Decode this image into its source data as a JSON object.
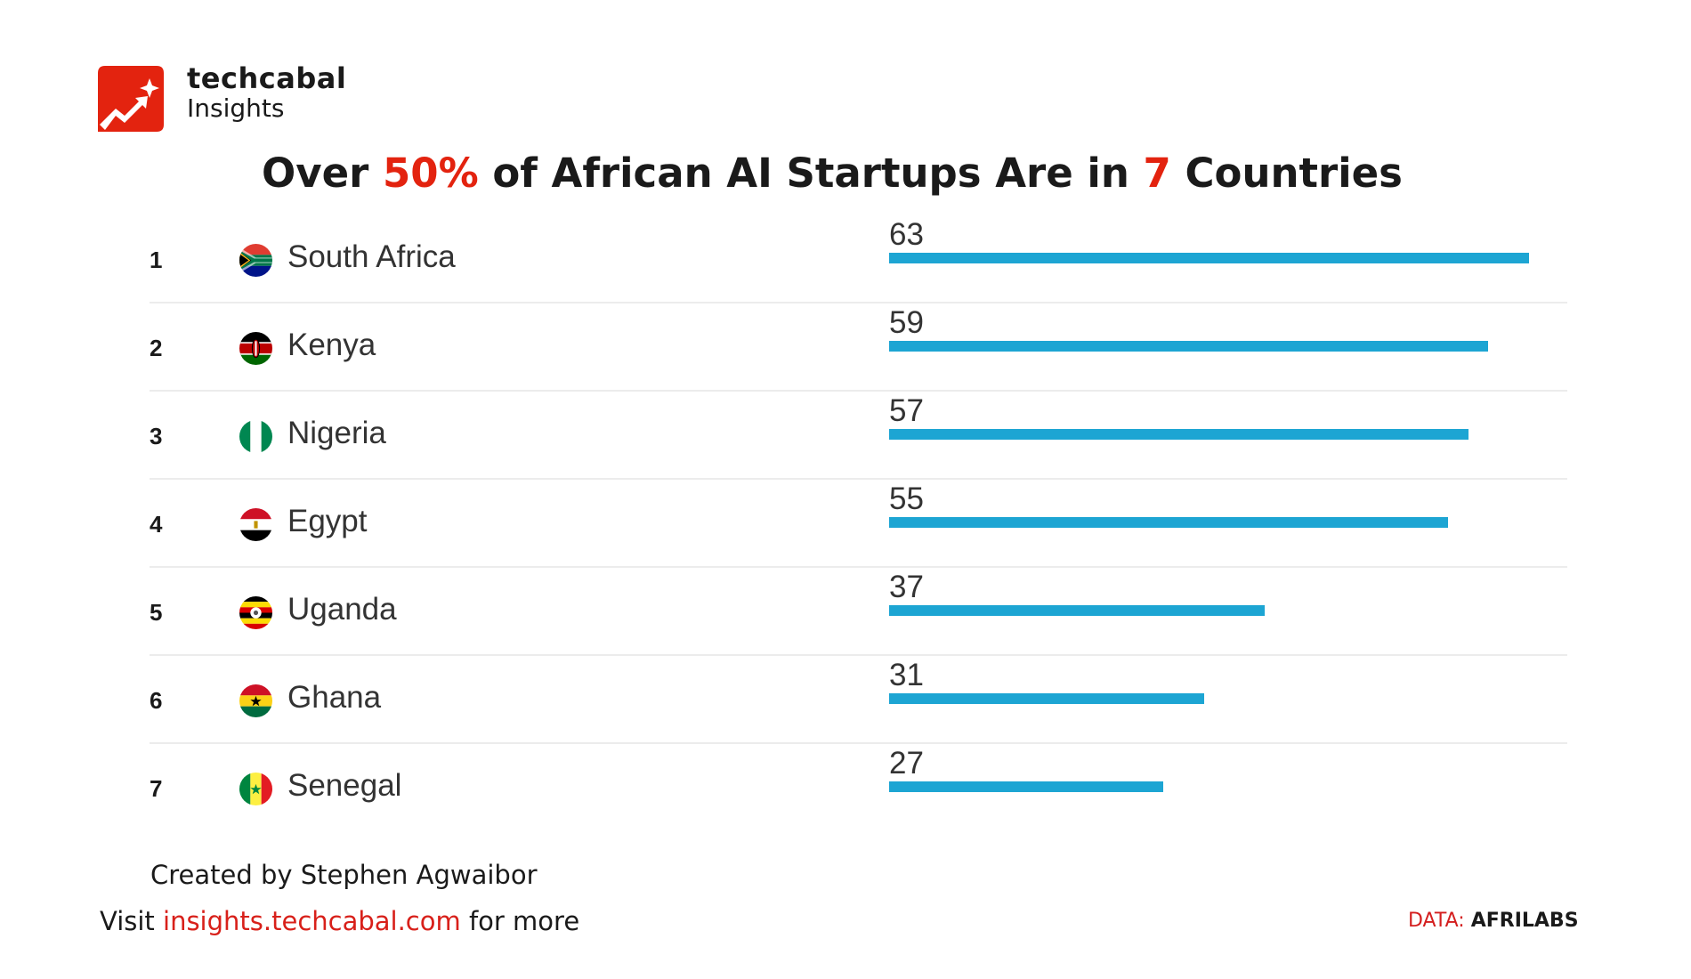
{
  "brand": {
    "name": "techcabal",
    "sub": "Insights",
    "logo_text": "techcabal Insights"
  },
  "title": {
    "pre": "Over ",
    "hl1": "50%",
    "mid": " of African AI Startups Are in ",
    "hl2": "7",
    "post": " Countries"
  },
  "colors": {
    "accent": "#e3230f",
    "bar": "#1da5d3"
  },
  "chart_data": {
    "type": "bar",
    "orientation": "horizontal",
    "title": "Over 50% of African AI Startups Are in 7 Countries",
    "ranks": [
      "1",
      "2",
      "3",
      "4",
      "5",
      "6",
      "7"
    ],
    "categories": [
      "South Africa",
      "Kenya",
      "Nigeria",
      "Egypt",
      "Uganda",
      "Ghana",
      "Senegal"
    ],
    "values": [
      63,
      59,
      57,
      55,
      37,
      31,
      27
    ],
    "flags": [
      "south-africa-flag-icon",
      "kenya-flag-icon",
      "nigeria-flag-icon",
      "egypt-flag-icon",
      "uganda-flag-icon",
      "ghana-flag-icon",
      "senegal-flag-icon"
    ],
    "grid": false
  },
  "footer": {
    "credit": "Created by Stephen Agwaibor",
    "visit_pre": "Visit ",
    "visit_link": "insights.techcabal.com",
    "visit_post": " for more",
    "source_label": "DATA:",
    "source_value": "AFRILABS"
  }
}
